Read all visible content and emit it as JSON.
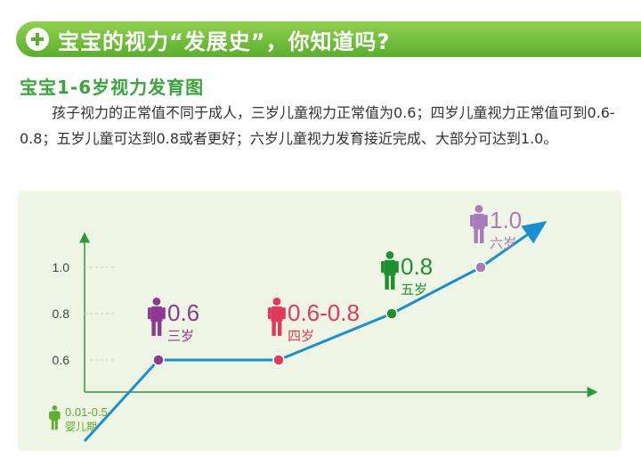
{
  "header": {
    "title": "宝宝的视力“发展史”，你知道吗?"
  },
  "subtitle": "宝宝1-6岁视力发育图",
  "paragraph": "孩子视力的正常值不同于成人，三岁儿童视力正常值为0.6；四岁儿童视力正常值可到0.6-0.8；五岁儿童可达到0.8或者更好；六岁儿童视力发育接近完成、大部分可达到1.0。",
  "colors": {
    "accent_green": "#5cae2e",
    "subtitle_green": "#3aa53a",
    "line_blue": "#1a8fd0",
    "axis_green": "#2a9a3a",
    "purple": "#8b3a8f",
    "red": "#e03a5a",
    "dark_green": "#1f8f2f",
    "lavender": "#a87bbd",
    "infant_green": "#5cae2e"
  },
  "chart_data": {
    "type": "line",
    "y_ticks": [
      "0.6",
      "0.8",
      "1.0"
    ],
    "points": [
      {
        "x": 0,
        "y": 0.25
      },
      {
        "x": 3,
        "y": 0.6,
        "value_label": "0.6",
        "age_label": "三岁",
        "color": "#8b3a8f"
      },
      {
        "x": 4,
        "y": 0.6,
        "value_label": "0.6-0.8",
        "age_label": "四岁",
        "color": "#e03a5a"
      },
      {
        "x": 5,
        "y": 0.8,
        "value_label": "0.8",
        "age_label": "五岁",
        "color": "#1f8f2f"
      },
      {
        "x": 6,
        "y": 1.0,
        "value_label": "1.0",
        "age_label": "六岁",
        "color": "#a87bbd"
      },
      {
        "x": 7.2,
        "y": 1.18
      }
    ],
    "origin_label": {
      "value": "0.01-0.5",
      "age": "婴儿期",
      "color": "#5cae2e"
    }
  }
}
